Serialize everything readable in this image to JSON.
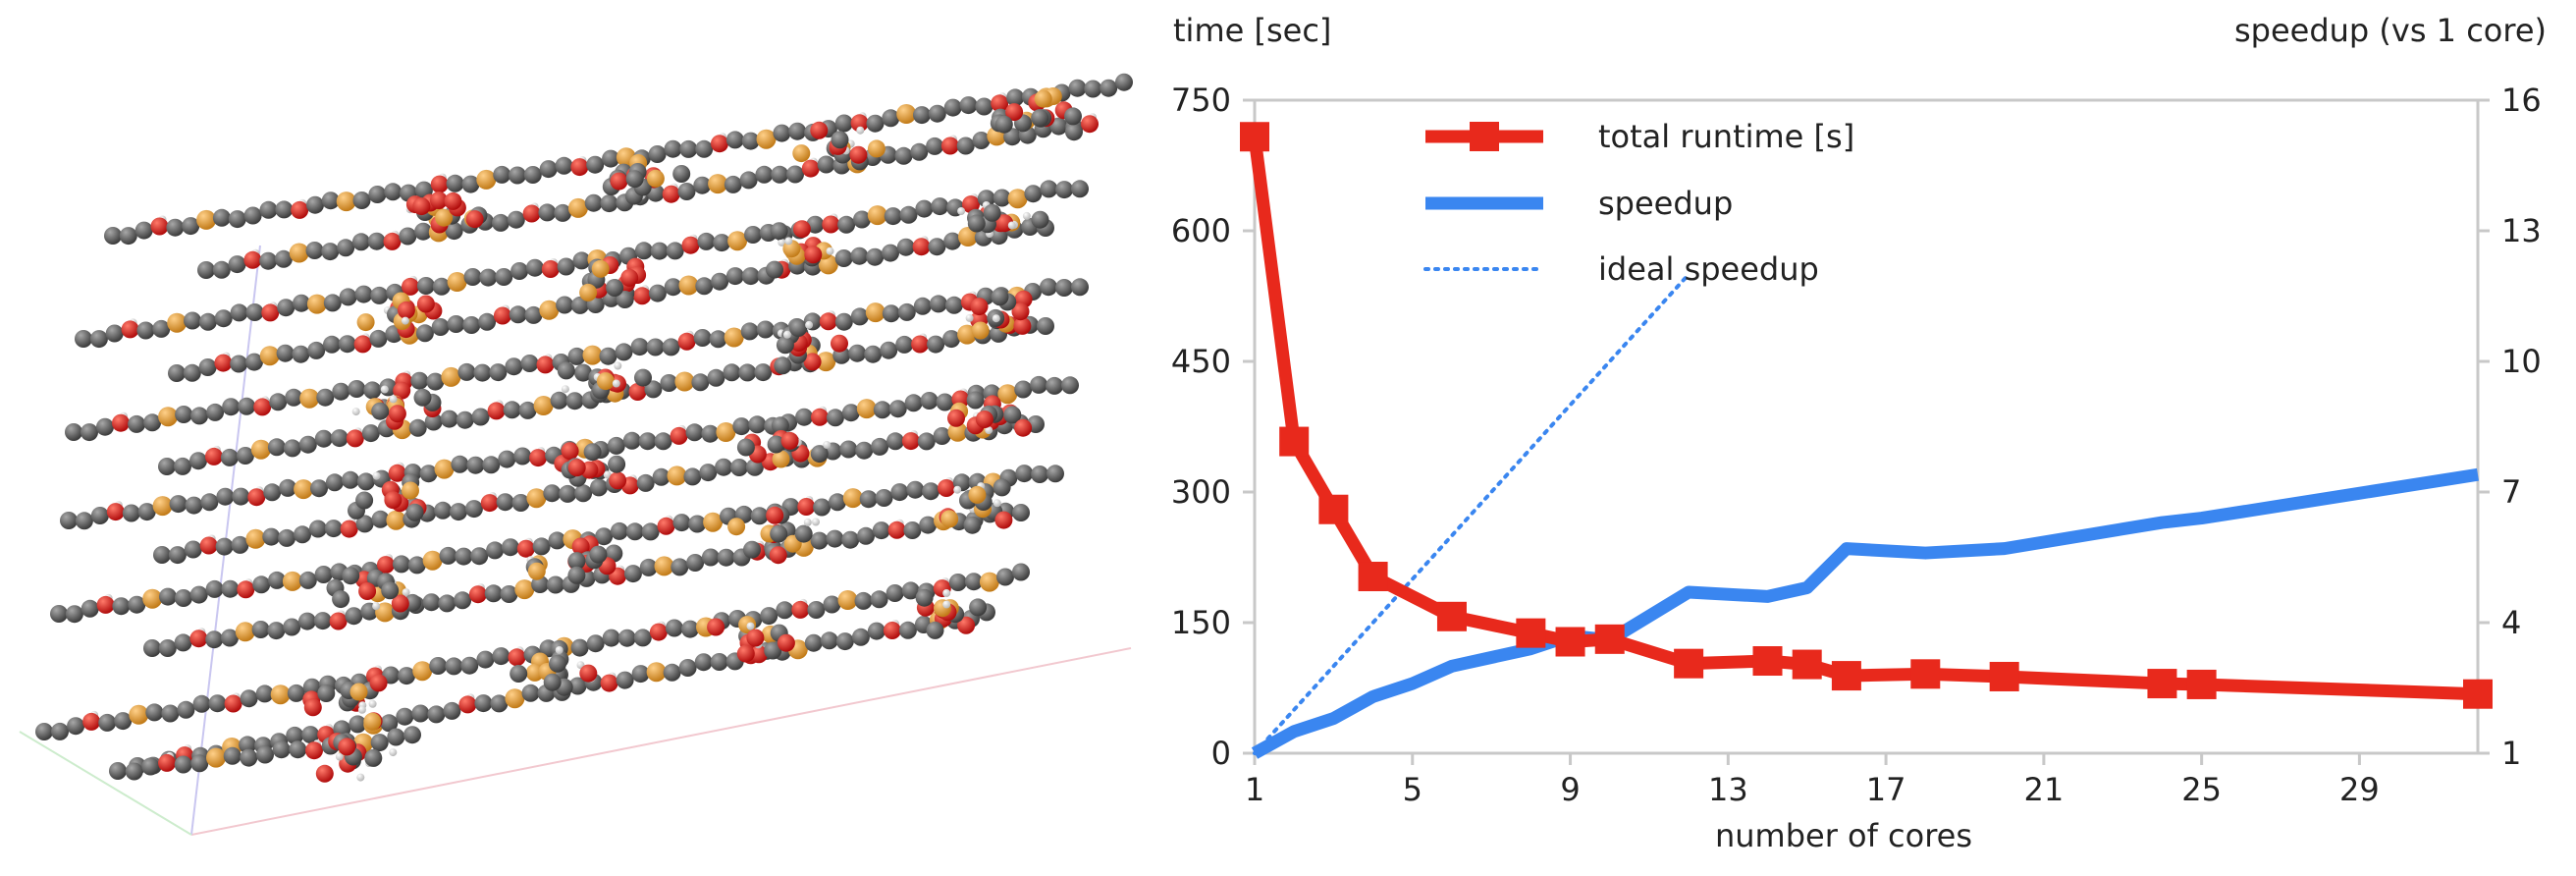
{
  "chart_data": {
    "type": "line",
    "title": "",
    "xlabel": "number of cores",
    "ylabel_left": "time [sec]",
    "ylabel_right": "speedup (vs 1 core)",
    "xlim": [
      1,
      32
    ],
    "ylim_left": [
      0,
      750
    ],
    "ylim_right": [
      1,
      16
    ],
    "x_ticks": [
      1,
      5,
      9,
      13,
      17,
      21,
      25,
      29
    ],
    "y_left_ticks": [
      0,
      150,
      300,
      450,
      600,
      750
    ],
    "y_right_ticks": [
      1,
      4,
      7,
      10,
      13,
      16
    ],
    "grid": false,
    "legend_position": "top-left",
    "series": [
      {
        "name": "total runtime [s]",
        "axis": "left",
        "color": "#e8291c",
        "style": "solid-square-markers",
        "x": [
          1,
          2,
          3,
          4,
          6,
          8,
          9,
          10,
          12,
          14,
          15,
          16,
          18,
          20,
          24,
          25,
          32
        ],
        "y": [
          708,
          358,
          280,
          203,
          157,
          138,
          128,
          131,
          103,
          106,
          102,
          89,
          91,
          88,
          80,
          79,
          68
        ]
      },
      {
        "name": "speedup",
        "axis": "right",
        "color": "#3a86f0",
        "style": "solid",
        "x": [
          1,
          2,
          3,
          4,
          5,
          6,
          8,
          9,
          10,
          12,
          14,
          15,
          16,
          18,
          20,
          24,
          25,
          32
        ],
        "y": [
          1.0,
          1.5,
          1.8,
          2.3,
          2.6,
          3.0,
          3.4,
          3.7,
          3.6,
          4.7,
          4.6,
          4.8,
          5.7,
          5.6,
          5.7,
          6.3,
          6.4,
          7.4
        ]
      },
      {
        "name": "ideal speedup",
        "axis": "right",
        "color": "#3a86f0",
        "style": "dotted",
        "x": [
          1,
          12
        ],
        "y": [
          1,
          12
        ]
      }
    ]
  }
}
